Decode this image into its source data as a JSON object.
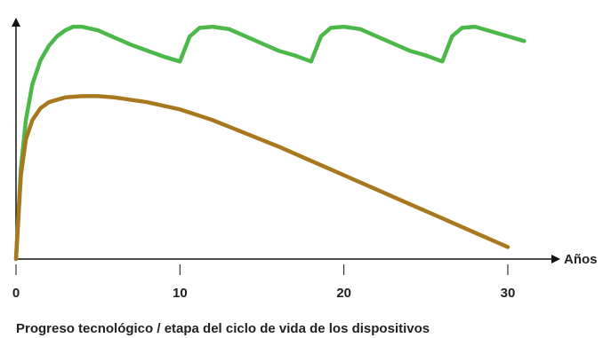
{
  "chart_data": {
    "type": "line",
    "xlabel": "Progreso tecnológico / etapa del ciclo de vida de los dispositivos",
    "x_unit": "Años",
    "ylabel": "",
    "xlim": [
      0,
      33
    ],
    "ylim": [
      0,
      100
    ],
    "x_ticks": [
      0,
      10,
      20,
      30
    ],
    "grid": false,
    "legend": "none",
    "series": [
      {
        "color": "#4cb84a",
        "x": [
          0,
          0.3,
          0.6,
          1.0,
          1.5,
          2.0,
          2.5,
          3.0,
          3.5,
          4.0,
          5.0,
          6.0,
          7.0,
          8.0,
          9.0,
          10.0,
          10.2,
          10.6,
          11.2,
          12.0,
          13.0,
          14.0,
          15.0,
          16.0,
          17.0,
          18.0,
          18.2,
          18.6,
          19.2,
          20.0,
          21.0,
          22.0,
          23.0,
          24.0,
          25.0,
          26.0,
          26.2,
          26.6,
          27.2,
          28.0,
          29.0,
          30.0,
          31.0
        ],
        "y": [
          0,
          38,
          58,
          73,
          83,
          89,
          93,
          95.5,
          97,
          97,
          95.5,
          92.5,
          89.5,
          87,
          84.5,
          82.5,
          86,
          93,
          96.5,
          97,
          96,
          93,
          90,
          87,
          85,
          82.5,
          86,
          93,
          96.5,
          97,
          96,
          93,
          90,
          87,
          85,
          82.5,
          86,
          93,
          96.5,
          97,
          95,
          93,
          91
        ]
      },
      {
        "color": "#a8781e",
        "x": [
          0,
          0.3,
          0.6,
          1.0,
          1.5,
          2.0,
          3.0,
          4.0,
          5.0,
          6.0,
          8.0,
          10.0,
          12.0,
          14.0,
          16.0,
          18.0,
          20.0,
          22.0,
          24.0,
          26.0,
          28.0,
          30.0
        ],
        "y": [
          0,
          35,
          50,
          58,
          63,
          65.5,
          67.5,
          68,
          68,
          67.5,
          65.5,
          62.5,
          58,
          52.5,
          47,
          41,
          35,
          29,
          23,
          17,
          11,
          5
        ]
      }
    ]
  }
}
